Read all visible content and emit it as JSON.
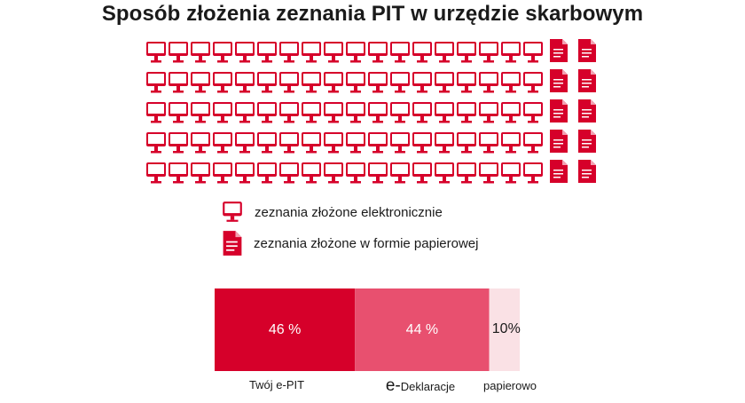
{
  "title": "Sposób złożenia zeznania PIT w urzędzie skarbowym",
  "colors": {
    "accent": "#d6002a",
    "medium": "#e8506f",
    "light": "#fae1e5"
  },
  "icons": {
    "electronic": "monitor-icon",
    "paper": "document-icon"
  },
  "icon_grid": {
    "rows": 5,
    "electronic_per_row": 18,
    "paper_per_row": 2
  },
  "legend": [
    {
      "icon": "monitor-icon",
      "label": "zeznania złożone elektronicznie"
    },
    {
      "icon": "document-icon",
      "label": "zeznania złożone w formie papierowej"
    }
  ],
  "chart_data": {
    "type": "bar",
    "stacked": true,
    "orientation": "horizontal",
    "categories": [
      "Twój e-PIT",
      "e-Deklaracje",
      "papierowo"
    ],
    "values": [
      46,
      44,
      10
    ],
    "labels": [
      "46 %",
      "44 %",
      "10%"
    ],
    "colors": [
      "#d6002a",
      "#e8506f",
      "#fae1e5"
    ]
  }
}
